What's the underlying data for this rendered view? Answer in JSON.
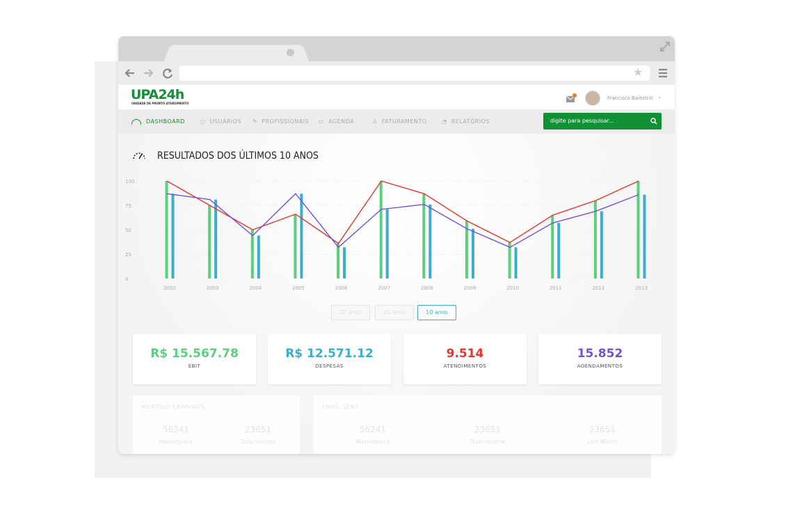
{
  "header": {
    "logo": "UPA24h",
    "logo_subtitle": "UNIDADE DE PRONTO ATENDIMENTO",
    "user": "Francisco Balestrin"
  },
  "nav": {
    "items": [
      "DASHBOARD",
      "USUÁRIOS",
      "PROFISSIONAIS",
      "AGENDA",
      "FATURAMENTO",
      "RELATÓRIOS"
    ],
    "search_placeholder": "digite para pesquisar..."
  },
  "chart_data": {
    "type": "bar",
    "title": "RESULTADOS DOS ÚLTIMOS 10 ANOS",
    "categories": [
      "2002",
      "2003",
      "2004",
      "2005",
      "2006",
      "2007",
      "2008",
      "2009",
      "2010",
      "2011",
      "2012",
      "2013"
    ],
    "series": [
      {
        "type": "bar",
        "color": "#5ccf7e",
        "values": [
          100,
          75,
          50,
          66,
          36,
          100,
          87,
          59,
          37,
          65,
          80,
          100
        ]
      },
      {
        "type": "bar",
        "color": "#3aaed0",
        "values": [
          87,
          81,
          44,
          87,
          32,
          71,
          76,
          51,
          32,
          57,
          69,
          86
        ]
      },
      {
        "type": "line",
        "color": "#e8352a",
        "values": [
          100,
          75,
          50,
          66,
          36,
          100,
          87,
          59,
          37,
          65,
          80,
          100
        ]
      },
      {
        "type": "line",
        "color": "#7352d8",
        "values": [
          87,
          81,
          44,
          87,
          32,
          71,
          76,
          51,
          32,
          57,
          69,
          86
        ]
      }
    ],
    "ylim": [
      0,
      100
    ],
    "yticks": [
      0,
      25,
      50,
      75,
      100
    ],
    "grid": true
  },
  "range_buttons": [
    "02 anos",
    "05 anos",
    "10 anos"
  ],
  "stats": [
    {
      "value": "R$ 15.567.78",
      "label": "EBIT"
    },
    {
      "value": "R$ 12.571.12",
      "label": "DESPESAS"
    },
    {
      "value": "9.514",
      "label": "ATENDIMENTOS"
    },
    {
      "value": "15.852",
      "label": "AGENDAMENTOS"
    }
  ],
  "panels": [
    {
      "title": "MONTHLY EARNINGS",
      "items": [
        {
          "value": "56241",
          "label": "Marketplace"
        },
        {
          "value": "23651",
          "label": "Total Income"
        }
      ]
    },
    {
      "title": "EMAIL SENT",
      "items": [
        {
          "value": "56241",
          "label": "Marketplace"
        },
        {
          "value": "23651",
          "label": "Total Income"
        },
        {
          "value": "23651",
          "label": "Last Month"
        }
      ]
    }
  ]
}
